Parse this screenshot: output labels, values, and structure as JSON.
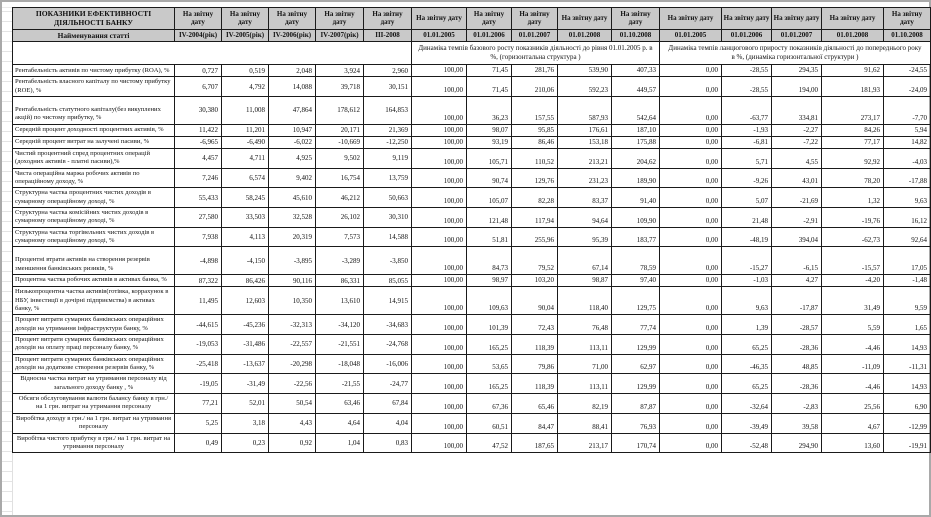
{
  "table": {
    "corner_title": "ПОКАЗНИКИ ЕФЕКТИВНОСТІ ДІЯЛЬНОСТІ  БАНКУ",
    "corner_subtitle": "Найменування статті",
    "report_date_label": "На звітну дату",
    "period_columns": [
      "IV-2004(рік)",
      "IV-2005(рік)",
      "IV-2006(рік)",
      "IV-2007(рік)",
      "III-2008"
    ],
    "base_block": {
      "dates": [
        "01.01.2005",
        "01.01.2006",
        "01.01.2007",
        "01.01.2008",
        "01.10.2008"
      ],
      "caption": "Динаміка темпів базового росту показників діяльності до рівня 01.01.2005 р. в %, (горизонтальна структура )"
    },
    "chain_block": {
      "dates": [
        "01.01.2005",
        "01.01.2006",
        "01.01.2007",
        "01.01.2008",
        "01.10.2008"
      ],
      "caption": "Динаміка темпів ланцюгового приросту показників діяльності до попереднього року в %, (динаміка горизонтальної структури )"
    },
    "rows": [
      {
        "label": "Рентабельність активів по чистому прибутку (ROA), %",
        "values": [
          "0,727",
          "0,519",
          "2,048",
          "3,924",
          "2,960"
        ],
        "base": [
          "100,00",
          "71,45",
          "281,76",
          "539,90",
          "407,33"
        ],
        "chain": [
          "0,00",
          "-28,55",
          "294,35",
          "91,62",
          "-24,55"
        ]
      },
      {
        "label": "Рентабельність власного капіталу по чистому прибутку (ROE), %",
        "values": [
          "6,707",
          "4,792",
          "14,088",
          "39,718",
          "30,151"
        ],
        "base": [
          "100,00",
          "71,45",
          "210,06",
          "592,23",
          "449,57"
        ],
        "chain": [
          "0,00",
          "-28,55",
          "194,00",
          "181,93",
          "-24,09"
        ]
      },
      {
        "label": "Рентабельність статутного капіталу(без викуплених акцій) по чистому прибутку, %",
        "pad_top": true,
        "values": [
          "30,380",
          "11,008",
          "47,864",
          "178,612",
          "164,853"
        ],
        "base": [
          "100,00",
          "36,23",
          "157,55",
          "587,93",
          "542,64"
        ],
        "chain": [
          "0,00",
          "-63,77",
          "334,81",
          "273,17",
          "-7,70"
        ]
      },
      {
        "label": "Середній процент доходності процентних активів, %",
        "values": [
          "11,422",
          "11,201",
          "10,947",
          "20,171",
          "21,369"
        ],
        "base": [
          "100,00",
          "98,07",
          "95,85",
          "176,61",
          "187,10"
        ],
        "chain": [
          "0,00",
          "-1,93",
          "-2,27",
          "84,26",
          "5,94"
        ]
      },
      {
        "label": "Середній процент витрат на залучені пасиви, %",
        "values": [
          "-6,965",
          "-6,490",
          "-6,022",
          "-10,669",
          "-12,250"
        ],
        "base": [
          "100,00",
          "93,19",
          "86,46",
          "153,18",
          "175,88"
        ],
        "chain": [
          "0,00",
          "-6,81",
          "-7,22",
          "77,17",
          "14,82"
        ]
      },
      {
        "label": "Чистий процентний спред процентних операцій (доходних активів - платні пасиви),%",
        "values": [
          "4,457",
          "4,711",
          "4,925",
          "9,502",
          "9,119"
        ],
        "base": [
          "100,00",
          "105,71",
          "110,52",
          "213,21",
          "204,62"
        ],
        "chain": [
          "0,00",
          "5,71",
          "4,55",
          "92,92",
          "-4,03"
        ]
      },
      {
        "label": "Чиста операційна маржа робочих активів по операційному доходу, %",
        "values": [
          "7,246",
          "6,574",
          "9,402",
          "16,754",
          "13,759"
        ],
        "base": [
          "100,00",
          "90,74",
          "129,76",
          "231,23",
          "189,90"
        ],
        "chain": [
          "0,00",
          "-9,26",
          "43,01",
          "78,20",
          "-17,88"
        ]
      },
      {
        "label": "Структурна частка процентних чистих доходів в сумарному операційному доході, %",
        "values": [
          "55,433",
          "58,245",
          "45,610",
          "46,212",
          "50,663"
        ],
        "base": [
          "100,00",
          "105,07",
          "82,28",
          "83,37",
          "91,40"
        ],
        "chain": [
          "0,00",
          "5,07",
          "-21,69",
          "1,32",
          "9,63"
        ]
      },
      {
        "label": "Структурна частка комісійних чистих доходів в сумарному операційному доході, %",
        "values": [
          "27,580",
          "33,503",
          "32,528",
          "26,102",
          "30,310"
        ],
        "base": [
          "100,00",
          "121,48",
          "117,94",
          "94,64",
          "109,90"
        ],
        "chain": [
          "0,00",
          "21,48",
          "-2,91",
          "-19,76",
          "16,12"
        ]
      },
      {
        "label": "Структурна частка торгівельних чистих доходів в сумарному операційному доході, %",
        "values": [
          "7,938",
          "4,113",
          "20,319",
          "7,573",
          "14,588"
        ],
        "base": [
          "100,00",
          "51,81",
          "255,96",
          "95,39",
          "183,77"
        ],
        "chain": [
          "0,00",
          "-48,19",
          "394,04",
          "-62,73",
          "92,64"
        ]
      },
      {
        "label": "Процентні втрати активів на створення резервів зменшення банківських ризиків, %",
        "pad_top": true,
        "values": [
          "-4,898",
          "-4,150",
          "-3,895",
          "-3,289",
          "-3,850"
        ],
        "base": [
          "100,00",
          "84,73",
          "79,52",
          "67,14",
          "78,59"
        ],
        "chain": [
          "0,00",
          "-15,27",
          "-6,15",
          "-15,57",
          "17,05"
        ]
      },
      {
        "label": "Процентна частка робочих активів в активах банка, %",
        "values": [
          "87,322",
          "86,426",
          "90,116",
          "86,331",
          "85,055"
        ],
        "base": [
          "100,00",
          "98,97",
          "103,20",
          "98,87",
          "97,40"
        ],
        "chain": [
          "0,00",
          "-1,03",
          "4,27",
          "-4,20",
          "-1,48"
        ]
      },
      {
        "label": "Низькопроцентна частка активів(готівка, коррахунок в НБУ, інвестиції в дочірні підприємства) в  активах банку, %",
        "values": [
          "11,495",
          "12,603",
          "10,350",
          "13,610",
          "14,915"
        ],
        "base": [
          "100,00",
          "109,63",
          "90,04",
          "118,40",
          "129,75"
        ],
        "chain": [
          "0,00",
          "9,63",
          "-17,87",
          "31,49",
          "9,59"
        ]
      },
      {
        "label": "Процент витрати сумарних банківських операційних доходів на утримання інфраструктури банку, %",
        "values": [
          "-44,615",
          "-45,236",
          "-32,313",
          "-34,120",
          "-34,683"
        ],
        "base": [
          "100,00",
          "101,39",
          "72,43",
          "76,48",
          "77,74"
        ],
        "chain": [
          "0,00",
          "1,39",
          "-28,57",
          "5,59",
          "1,65"
        ]
      },
      {
        "label": "Процент витрати сумарних банківських операційних доходів на оплату праці персоналу банку, %",
        "values": [
          "-19,053",
          "-31,486",
          "-22,557",
          "-21,551",
          "-24,768"
        ],
        "base": [
          "100,00",
          "165,25",
          "118,39",
          "113,11",
          "129,99"
        ],
        "chain": [
          "0,00",
          "65,25",
          "-28,36",
          "-4,46",
          "14,93"
        ]
      },
      {
        "label": "Процент витрати сумарних банківських операційних доходів на додаткове створення резервів банку, %",
        "values": [
          "-25,418",
          "-13,637",
          "-20,298",
          "-18,048",
          "-16,006"
        ],
        "base": [
          "100,00",
          "53,65",
          "79,86",
          "71,00",
          "62,97"
        ],
        "chain": [
          "0,00",
          "-46,35",
          "48,85",
          "-11,09",
          "-11,31"
        ]
      },
      {
        "label": "Відносна частка витрат на утримання персоналу від загального доходу банку , %",
        "centered": true,
        "values": [
          "-19,05",
          "-31,49",
          "-22,56",
          "-21,55",
          "-24,77"
        ],
        "base": [
          "100,00",
          "165,25",
          "118,39",
          "113,11",
          "129,99"
        ],
        "chain": [
          "0,00",
          "65,25",
          "-28,36",
          "-4,46",
          "14,93"
        ]
      },
      {
        "label": "Обсяги обслуговування валюти балансу банку в грн./ на 1 грн. витрат на утримання персоналу",
        "centered": true,
        "values": [
          "77,21",
          "52,01",
          "50,54",
          "63,46",
          "67,84"
        ],
        "base": [
          "100,00",
          "67,36",
          "65,46",
          "82,19",
          "87,87"
        ],
        "chain": [
          "0,00",
          "-32,64",
          "-2,83",
          "25,56",
          "6,90"
        ]
      },
      {
        "label": "Виробітка доходу в грн./ на 1 грн. витрат на утримання персоналу",
        "centered": true,
        "values": [
          "5,25",
          "3,18",
          "4,43",
          "4,64",
          "4,04"
        ],
        "base": [
          "100,00",
          "60,51",
          "84,47",
          "88,41",
          "76,93"
        ],
        "chain": [
          "0,00",
          "-39,49",
          "39,58",
          "4,67",
          "-12,99"
        ]
      },
      {
        "label": "Виробітка чистого прибутку в грн./ на 1 грн. витрат на утримання персоналу",
        "centered": true,
        "values": [
          "0,49",
          "0,23",
          "0,92",
          "1,04",
          "0,83"
        ],
        "base": [
          "100,00",
          "47,52",
          "187,65",
          "213,17",
          "170,74"
        ],
        "chain": [
          "0,00",
          "-52,48",
          "294,90",
          "13,60",
          "-19,91"
        ]
      }
    ]
  }
}
